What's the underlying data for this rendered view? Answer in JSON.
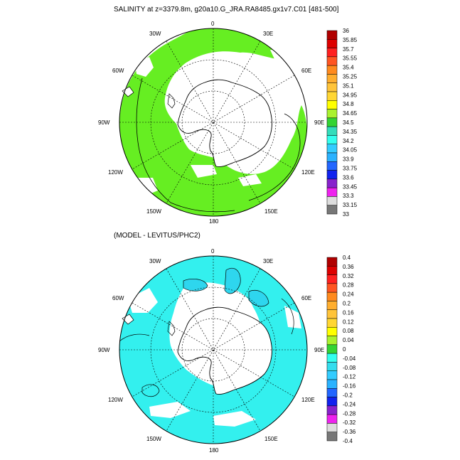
{
  "panels": [
    {
      "id": "top",
      "title": "SALINITY at z=3379.8m, g20a10.G_JRA.RA8485.gx1v7.C01 [481-500]",
      "lon_labels": [
        "0",
        "30E",
        "60E",
        "90E",
        "120E",
        "150E",
        "180",
        "150W",
        "120W",
        "90W",
        "60W",
        "30W"
      ],
      "colorbar_labels": [
        "36",
        "35.85",
        "35.7",
        "35.55",
        "35.4",
        "35.25",
        "35.1",
        "34.95",
        "34.8",
        "34.65",
        "34.5",
        "34.35",
        "34.2",
        "34.05",
        "33.9",
        "33.75",
        "33.6",
        "33.45",
        "33.3",
        "33.15",
        "33"
      ],
      "colorbar_colors": [
        "#b00000",
        "#dd0000",
        "#ff2020",
        "#ff5522",
        "#ff8a1e",
        "#ffae2e",
        "#ffc43a",
        "#ffd633",
        "#ffff00",
        "#aaf22f",
        "#33d433",
        "#33ddbb",
        "#33ffee",
        "#33ccff",
        "#2ab2ff",
        "#2266ff",
        "#1122ee",
        "#8822cc",
        "#ee22ee",
        "#dddddd"
      ],
      "field_colors": {
        "ocean": "#66ee22",
        "ocean_alt": "#55e24a"
      }
    },
    {
      "id": "bottom",
      "title": "(MODEL - LEVITUS/PHC2)",
      "lon_labels": [
        "0",
        "30E",
        "60E",
        "90E",
        "120E",
        "150E",
        "180",
        "150W",
        "120W",
        "90W",
        "60W",
        "30W"
      ],
      "colorbar_labels": [
        "0.4",
        "0.36",
        "0.32",
        "0.28",
        "0.24",
        "0.2",
        "0.16",
        "0.12",
        "0.08",
        "0.04",
        "0",
        "-0.04",
        "-0.08",
        "-0.12",
        "-0.16",
        "-0.2",
        "-0.24",
        "-0.28",
        "-0.32",
        "-0.36",
        "-0.4"
      ],
      "colorbar_colors": [
        "#b00000",
        "#dd0000",
        "#ff2020",
        "#ff5522",
        "#ff8a1e",
        "#ffae2e",
        "#ffc43a",
        "#ffd633",
        "#ffff00",
        "#aaf22f",
        "#33d433",
        "#33ffee",
        "#33ddee",
        "#33ccff",
        "#2ab2ff",
        "#2266ff",
        "#1122ee",
        "#8822cc",
        "#ee22ee",
        "#dddddd"
      ],
      "field_colors": {
        "ocean": "#33f0ee",
        "ocean_alt": "#2ed6ee"
      }
    }
  ],
  "colors": {
    "land": "#ffffff",
    "coast": "#000000",
    "grid": "#000000",
    "colorbar_bottom": "#777777"
  }
}
